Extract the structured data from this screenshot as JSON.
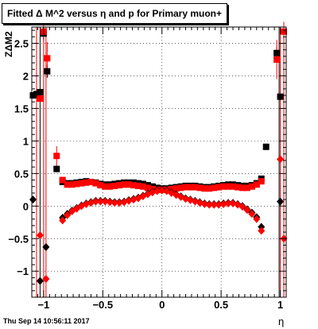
{
  "title": "Fitted Δ M^2 versus η and p for Primary muon+",
  "footer": "Thu Sep 14 10:56:11 2017",
  "colors": {
    "red": "#ff0000",
    "black": "#000000"
  },
  "chart_data": {
    "type": "scatter",
    "title": "Fitted Δ M^2 versus η and p for Primary muon+",
    "xlabel": "η",
    "ylabel": "ZΔM2",
    "xlim": [
      -1.1,
      1.05
    ],
    "ylim": [
      -1.4,
      2.75
    ],
    "xticks": [
      -1,
      -0.5,
      0,
      0.5,
      1
    ],
    "xtick_labels": [
      "−1",
      "−0.5",
      "0",
      "0.5",
      "1"
    ],
    "yticks": [
      -1,
      -0.5,
      0,
      0.5,
      1,
      1.5,
      2,
      2.5
    ],
    "ytick_labels": [
      "−1",
      "−0.5",
      "0",
      "0.5",
      "1",
      "1.5",
      "2",
      "2.5"
    ],
    "grid": true,
    "series": [
      {
        "marker": "square",
        "color": "#000000",
        "points": [
          {
            "x": -1.09,
            "y": 1.7,
            "err": 0.05
          },
          {
            "x": -1.06,
            "y": 1.72,
            "err": 0.05
          },
          {
            "x": -1.03,
            "y": 1.75,
            "err": 0.05
          },
          {
            "x": -1.0,
            "y": 2.65,
            "err": 0.1
          },
          {
            "x": -0.97,
            "y": 2.07,
            "err": 0.1
          },
          {
            "x": -0.89,
            "y": 0.57,
            "err": 0.05
          },
          {
            "x": -0.84,
            "y": 0.37
          },
          {
            "x": -0.8,
            "y": 0.35
          },
          {
            "x": -0.76,
            "y": 0.35
          },
          {
            "x": -0.72,
            "y": 0.36
          },
          {
            "x": -0.68,
            "y": 0.37
          },
          {
            "x": -0.64,
            "y": 0.38
          },
          {
            "x": -0.6,
            "y": 0.37
          },
          {
            "x": -0.56,
            "y": 0.36
          },
          {
            "x": -0.52,
            "y": 0.34
          },
          {
            "x": -0.48,
            "y": 0.33
          },
          {
            "x": -0.44,
            "y": 0.33
          },
          {
            "x": -0.4,
            "y": 0.34
          },
          {
            "x": -0.36,
            "y": 0.35
          },
          {
            "x": -0.32,
            "y": 0.36
          },
          {
            "x": -0.28,
            "y": 0.36
          },
          {
            "x": -0.24,
            "y": 0.36
          },
          {
            "x": -0.2,
            "y": 0.35
          },
          {
            "x": -0.16,
            "y": 0.34
          },
          {
            "x": -0.12,
            "y": 0.32
          },
          {
            "x": -0.08,
            "y": 0.3
          },
          {
            "x": -0.04,
            "y": 0.28
          },
          {
            "x": 0.0,
            "y": 0.27
          },
          {
            "x": 0.04,
            "y": 0.27
          },
          {
            "x": 0.08,
            "y": 0.28
          },
          {
            "x": 0.12,
            "y": 0.29
          },
          {
            "x": 0.16,
            "y": 0.3
          },
          {
            "x": 0.2,
            "y": 0.31
          },
          {
            "x": 0.24,
            "y": 0.31
          },
          {
            "x": 0.28,
            "y": 0.31
          },
          {
            "x": 0.32,
            "y": 0.3
          },
          {
            "x": 0.36,
            "y": 0.29
          },
          {
            "x": 0.4,
            "y": 0.29
          },
          {
            "x": 0.44,
            "y": 0.3
          },
          {
            "x": 0.48,
            "y": 0.31
          },
          {
            "x": 0.52,
            "y": 0.32
          },
          {
            "x": 0.56,
            "y": 0.33
          },
          {
            "x": 0.6,
            "y": 0.33
          },
          {
            "x": 0.64,
            "y": 0.32
          },
          {
            "x": 0.68,
            "y": 0.31
          },
          {
            "x": 0.72,
            "y": 0.31
          },
          {
            "x": 0.76,
            "y": 0.32
          },
          {
            "x": 0.8,
            "y": 0.35
          },
          {
            "x": 0.84,
            "y": 0.42
          },
          {
            "x": 0.88,
            "y": 0.91,
            "err": 0.05
          },
          {
            "x": 0.97,
            "y": 2.35,
            "err": 0.1
          },
          {
            "x": 1.0,
            "y": 1.68,
            "err": 0.05
          }
        ]
      },
      {
        "marker": "square",
        "color": "#ff0000",
        "points": [
          {
            "x": -1.03,
            "y": 1.65,
            "err": 0.05
          },
          {
            "x": -1.0,
            "y": 2.68,
            "err": 0.15
          },
          {
            "x": -0.97,
            "y": 2.27,
            "err": 0.25
          },
          {
            "x": -0.89,
            "y": 0.77,
            "err": 0.15
          },
          {
            "x": -0.84,
            "y": 0.4
          },
          {
            "x": -0.8,
            "y": 0.33
          },
          {
            "x": -0.76,
            "y": 0.33
          },
          {
            "x": -0.72,
            "y": 0.34
          },
          {
            "x": -0.68,
            "y": 0.35
          },
          {
            "x": -0.64,
            "y": 0.36
          },
          {
            "x": -0.6,
            "y": 0.37
          },
          {
            "x": -0.56,
            "y": 0.35
          },
          {
            "x": -0.52,
            "y": 0.32
          },
          {
            "x": -0.48,
            "y": 0.3
          },
          {
            "x": -0.44,
            "y": 0.3
          },
          {
            "x": -0.4,
            "y": 0.31
          },
          {
            "x": -0.36,
            "y": 0.32
          },
          {
            "x": -0.32,
            "y": 0.33
          },
          {
            "x": -0.28,
            "y": 0.33
          },
          {
            "x": -0.24,
            "y": 0.32
          },
          {
            "x": -0.2,
            "y": 0.31
          },
          {
            "x": -0.16,
            "y": 0.3
          },
          {
            "x": -0.12,
            "y": 0.28
          },
          {
            "x": -0.08,
            "y": 0.26
          },
          {
            "x": -0.04,
            "y": 0.25
          },
          {
            "x": 0.0,
            "y": 0.25
          },
          {
            "x": 0.04,
            "y": 0.25
          },
          {
            "x": 0.08,
            "y": 0.26
          },
          {
            "x": 0.12,
            "y": 0.27
          },
          {
            "x": 0.16,
            "y": 0.28
          },
          {
            "x": 0.2,
            "y": 0.29
          },
          {
            "x": 0.24,
            "y": 0.29
          },
          {
            "x": 0.28,
            "y": 0.29
          },
          {
            "x": 0.32,
            "y": 0.28
          },
          {
            "x": 0.36,
            "y": 0.27
          },
          {
            "x": 0.4,
            "y": 0.27
          },
          {
            "x": 0.44,
            "y": 0.28
          },
          {
            "x": 0.48,
            "y": 0.29
          },
          {
            "x": 0.52,
            "y": 0.3
          },
          {
            "x": 0.56,
            "y": 0.3
          },
          {
            "x": 0.6,
            "y": 0.3
          },
          {
            "x": 0.64,
            "y": 0.29
          },
          {
            "x": 0.68,
            "y": 0.28
          },
          {
            "x": 0.72,
            "y": 0.28
          },
          {
            "x": 0.76,
            "y": 0.3
          },
          {
            "x": 0.8,
            "y": 0.33
          },
          {
            "x": 0.84,
            "y": 0.38
          },
          {
            "x": 0.97,
            "y": 2.25,
            "err": 0.3
          },
          {
            "x": 1.03,
            "y": 2.68,
            "err": 0.15
          }
        ]
      },
      {
        "marker": "diamond",
        "color": "#000000",
        "points": [
          {
            "x": -1.09,
            "y": 0.1
          },
          {
            "x": -1.03,
            "y": -1.15
          },
          {
            "x": -0.98,
            "y": -0.63
          },
          {
            "x": -0.84,
            "y": -0.18
          },
          {
            "x": -0.8,
            "y": -0.12
          },
          {
            "x": -0.76,
            "y": -0.07
          },
          {
            "x": -0.72,
            "y": -0.03
          },
          {
            "x": -0.68,
            "y": 0.01
          },
          {
            "x": -0.64,
            "y": 0.04
          },
          {
            "x": -0.6,
            "y": 0.06
          },
          {
            "x": -0.56,
            "y": 0.08
          },
          {
            "x": -0.52,
            "y": 0.08
          },
          {
            "x": -0.48,
            "y": 0.08
          },
          {
            "x": -0.44,
            "y": 0.07
          },
          {
            "x": -0.4,
            "y": 0.06
          },
          {
            "x": -0.36,
            "y": 0.06
          },
          {
            "x": -0.32,
            "y": 0.07
          },
          {
            "x": -0.28,
            "y": 0.09
          },
          {
            "x": -0.24,
            "y": 0.11
          },
          {
            "x": -0.2,
            "y": 0.13
          },
          {
            "x": -0.16,
            "y": 0.16
          },
          {
            "x": -0.12,
            "y": 0.19
          },
          {
            "x": -0.08,
            "y": 0.22
          },
          {
            "x": -0.04,
            "y": 0.24
          },
          {
            "x": 0.0,
            "y": 0.25
          },
          {
            "x": 0.04,
            "y": 0.24
          },
          {
            "x": 0.08,
            "y": 0.21
          },
          {
            "x": 0.12,
            "y": 0.18
          },
          {
            "x": 0.16,
            "y": 0.15
          },
          {
            "x": 0.2,
            "y": 0.12
          },
          {
            "x": 0.24,
            "y": 0.1
          },
          {
            "x": 0.28,
            "y": 0.08
          },
          {
            "x": 0.32,
            "y": 0.06
          },
          {
            "x": 0.36,
            "y": 0.04
          },
          {
            "x": 0.4,
            "y": 0.03
          },
          {
            "x": 0.44,
            "y": 0.03
          },
          {
            "x": 0.48,
            "y": 0.03
          },
          {
            "x": 0.52,
            "y": 0.04
          },
          {
            "x": 0.56,
            "y": 0.05
          },
          {
            "x": 0.6,
            "y": 0.05
          },
          {
            "x": 0.64,
            "y": 0.03
          },
          {
            "x": 0.68,
            "y": 0.0
          },
          {
            "x": 0.72,
            "y": -0.05
          },
          {
            "x": 0.76,
            "y": -0.1
          },
          {
            "x": 0.8,
            "y": -0.17
          },
          {
            "x": 0.84,
            "y": -0.32
          },
          {
            "x": 1.0,
            "y": 0.07
          }
        ]
      },
      {
        "marker": "diamond",
        "color": "#ff0000",
        "points": [
          {
            "x": -1.03,
            "y": -0.45
          },
          {
            "x": -0.98,
            "y": -1.12
          },
          {
            "x": -0.84,
            "y": -0.22
          },
          {
            "x": -0.8,
            "y": -0.14
          },
          {
            "x": -0.76,
            "y": -0.08
          },
          {
            "x": -0.72,
            "y": -0.04
          },
          {
            "x": -0.68,
            "y": 0.0
          },
          {
            "x": -0.64,
            "y": 0.03
          },
          {
            "x": -0.6,
            "y": 0.05
          },
          {
            "x": -0.56,
            "y": 0.07
          },
          {
            "x": -0.52,
            "y": 0.07
          },
          {
            "x": -0.48,
            "y": 0.07
          },
          {
            "x": -0.44,
            "y": 0.06
          },
          {
            "x": -0.4,
            "y": 0.05
          },
          {
            "x": -0.36,
            "y": 0.05
          },
          {
            "x": -0.32,
            "y": 0.06
          },
          {
            "x": -0.28,
            "y": 0.08
          },
          {
            "x": -0.24,
            "y": 0.1
          },
          {
            "x": -0.2,
            "y": 0.12
          },
          {
            "x": -0.16,
            "y": 0.15
          },
          {
            "x": -0.12,
            "y": 0.18
          },
          {
            "x": -0.08,
            "y": 0.21
          },
          {
            "x": -0.04,
            "y": 0.23
          },
          {
            "x": 0.0,
            "y": 0.24
          },
          {
            "x": 0.04,
            "y": 0.23
          },
          {
            "x": 0.08,
            "y": 0.2
          },
          {
            "x": 0.12,
            "y": 0.17
          },
          {
            "x": 0.16,
            "y": 0.14
          },
          {
            "x": 0.2,
            "y": 0.11
          },
          {
            "x": 0.24,
            "y": 0.09
          },
          {
            "x": 0.28,
            "y": 0.07
          },
          {
            "x": 0.32,
            "y": 0.05
          },
          {
            "x": 0.36,
            "y": 0.03
          },
          {
            "x": 0.4,
            "y": 0.02
          },
          {
            "x": 0.44,
            "y": 0.02
          },
          {
            "x": 0.48,
            "y": 0.02
          },
          {
            "x": 0.52,
            "y": 0.03
          },
          {
            "x": 0.56,
            "y": 0.04
          },
          {
            "x": 0.6,
            "y": 0.04
          },
          {
            "x": 0.64,
            "y": 0.02
          },
          {
            "x": 0.68,
            "y": -0.01
          },
          {
            "x": 0.72,
            "y": -0.06
          },
          {
            "x": 0.76,
            "y": -0.12
          },
          {
            "x": 0.8,
            "y": -0.2
          },
          {
            "x": 0.84,
            "y": -0.38
          },
          {
            "x": 1.0,
            "y": 0.72
          },
          {
            "x": 1.03,
            "y": -0.5
          }
        ]
      }
    ],
    "error_bars_full": [
      {
        "x": -1.06,
        "color": "#ff0000"
      },
      {
        "x": -1.03,
        "color": "#000000"
      },
      {
        "x": -1.0,
        "color": "#ff0000"
      },
      {
        "x": -0.98,
        "color": "#ff0000"
      },
      {
        "x": 0.99,
        "color": "#000000"
      },
      {
        "x": 1.0,
        "color": "#ff0000"
      },
      {
        "x": 1.03,
        "color": "#ff0000"
      }
    ]
  }
}
